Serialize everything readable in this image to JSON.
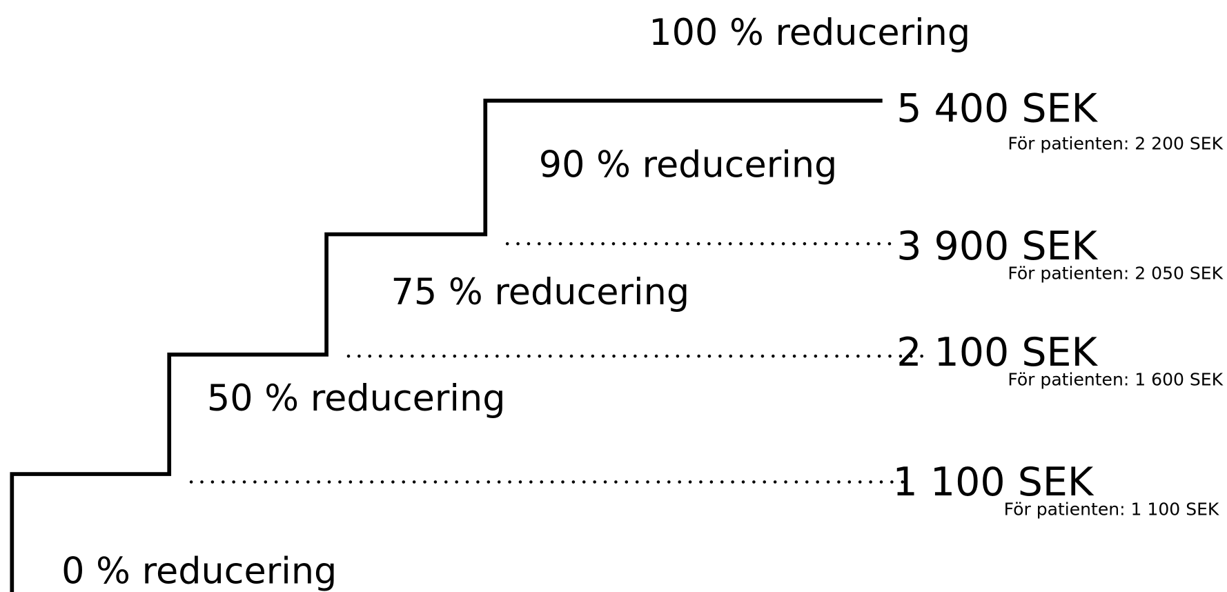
{
  "reductions": [
    "100 % reducering",
    "90 % reducering",
    "75 % reducering",
    "50 % reducering",
    "0 % reducering"
  ],
  "thresholds": [
    {
      "amount": "5 400 SEK",
      "patient": "För patienten: 2 200 SEK"
    },
    {
      "amount": "3 900 SEK",
      "patient": "För patienten: 2 050 SEK"
    },
    {
      "amount": "2 100 SEK",
      "patient": "För patienten: 1 600 SEK"
    },
    {
      "amount": "1 100 SEK",
      "patient": "För patienten: 1 100 SEK"
    }
  ]
}
